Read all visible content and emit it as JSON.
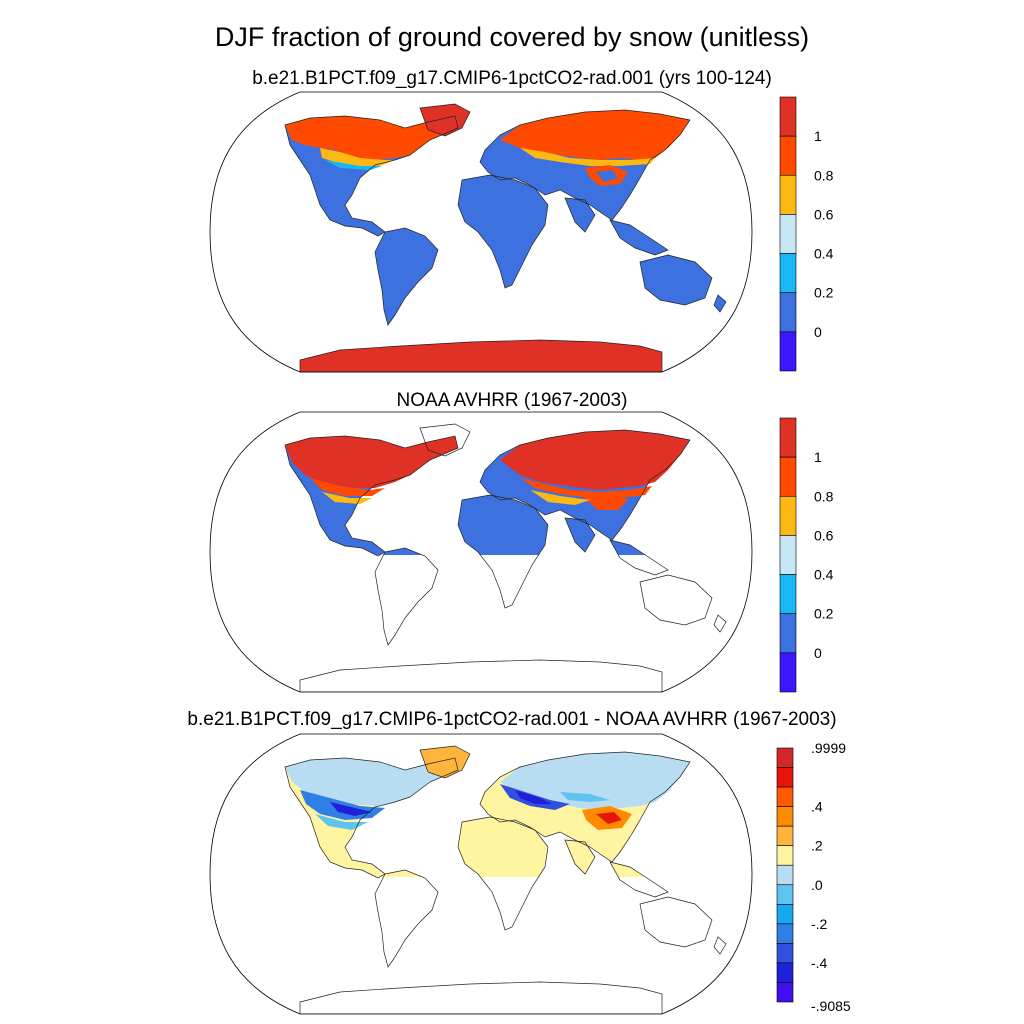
{
  "main_title": "DJF fraction of ground covered by snow (unitless)",
  "panels": [
    {
      "title": "b.e21.B1PCT.f09_g17.CMIP6-1pctCO2-rad.001 (yrs 100-124)",
      "colorbar": {
        "labels": [
          "1",
          "0.8",
          "0.6",
          "0.4",
          "0.2",
          "0"
        ],
        "colors": [
          "#e03127",
          "#ff4a00",
          "#fdb913",
          "#c7e6f6",
          "#18b8f5",
          "#3e71e0",
          "#3d16ff"
        ]
      }
    },
    {
      "title": "NOAA AVHRR (1967-2003)",
      "colorbar": {
        "labels": [
          "1",
          "0.8",
          "0.6",
          "0.4",
          "0.2",
          "0"
        ],
        "colors": [
          "#e03127",
          "#ff4a00",
          "#fdb913",
          "#c7e6f6",
          "#18b8f5",
          "#3e71e0",
          "#3d16ff"
        ]
      }
    },
    {
      "title": "b.e21.B1PCT.f09_g17.CMIP6-1pctCO2-rad.001 - NOAA AVHRR (1967-2003)",
      "colorbar": {
        "labels": [
          ".9999",
          ".4",
          ".2",
          ".0",
          "-.2",
          "-.4",
          "-.9085"
        ],
        "colors": [
          "#d62728",
          "#e8150a",
          "#ff5a00",
          "#ff8c00",
          "#ffb43c",
          "#fff5a0",
          "#b8dcf2",
          "#5fc4f0",
          "#18a8f0",
          "#2f7fe6",
          "#3050e0",
          "#2020d8",
          "#4010f0"
        ]
      }
    }
  ]
}
